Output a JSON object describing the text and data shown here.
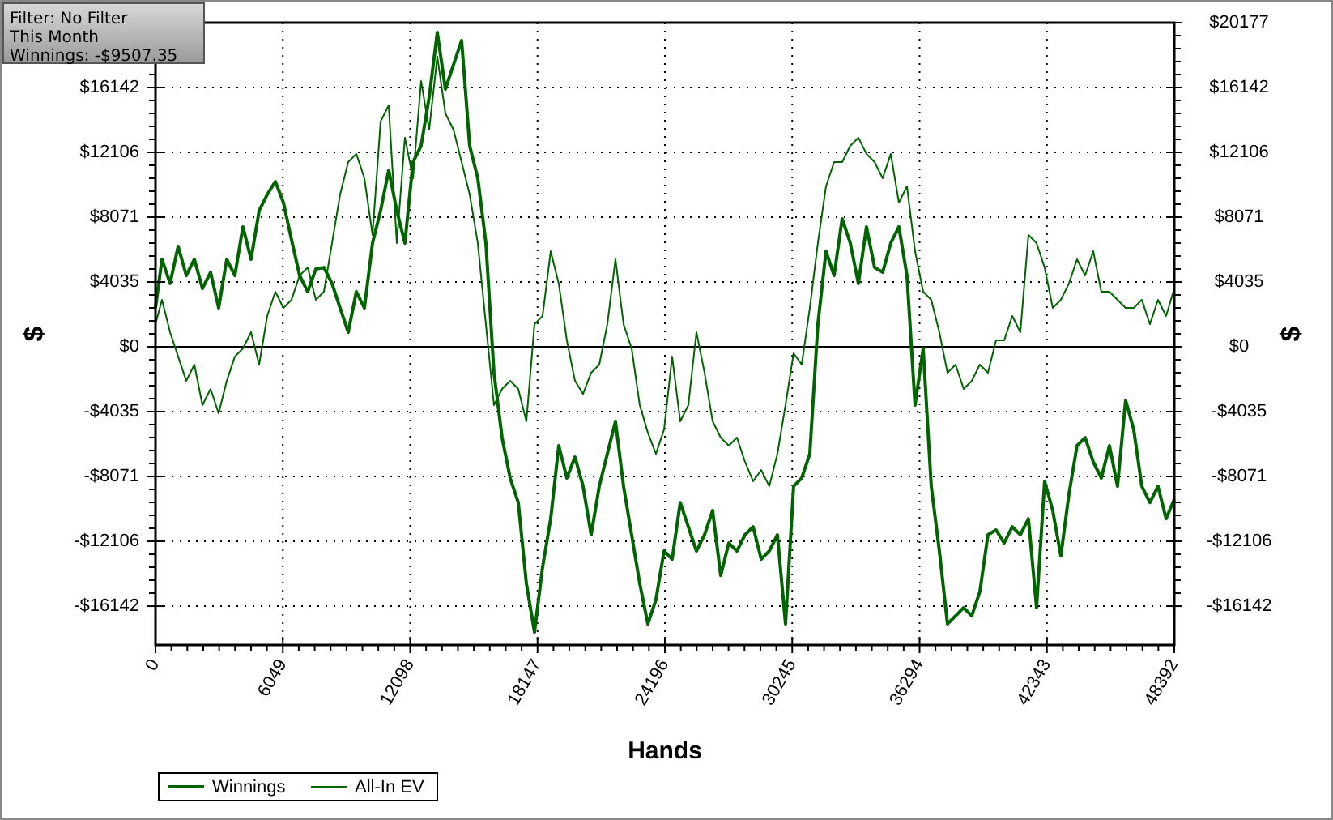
{
  "chart_data": {
    "type": "line",
    "xlabel": "Hands",
    "ylabel": "$",
    "y2label": "$",
    "annotations": [
      "Filter: No Filter",
      "This Month",
      "Winnings: -$9507.35"
    ],
    "x": [
      0,
      308,
      692,
      1077,
      1462,
      1846,
      2231,
      2616,
      3000,
      3385,
      3770,
      4154,
      4539,
      4924,
      5308,
      5693,
      6077,
      6462,
      6847,
      7231,
      7616,
      8001,
      8385,
      8770,
      9155,
      9539,
      9924,
      10309,
      10693,
      11078,
      11462,
      11847,
      12232,
      12616,
      13001,
      13386,
      13770,
      14155,
      14540,
      14924,
      15309,
      15694,
      16078,
      16463,
      16848,
      17232,
      17617,
      18002,
      18386,
      18771,
      19155,
      19540,
      19925,
      20309,
      20694,
      21079,
      21463,
      21848,
      22233,
      22617,
      23002,
      23387,
      23771,
      24156,
      24541,
      24925,
      25310,
      25695,
      26079,
      26464,
      26848,
      27233,
      27618,
      28002,
      28387,
      28772,
      29156,
      29541,
      29926,
      30310,
      30695,
      31080,
      31464,
      31849,
      32234,
      32618,
      33003,
      33387,
      33772,
      34157,
      34541,
      34926,
      35311,
      35695,
      36080,
      36465,
      36849,
      37234,
      37619,
      38003,
      38388,
      38773,
      39157,
      39542,
      39927,
      40311,
      40696,
      41081,
      41465,
      41850,
      42234,
      42619,
      43004,
      43388,
      43773,
      44158,
      44542,
      44927,
      45312,
      45696,
      46081,
      46465,
      46850,
      47235,
      47619,
      48004,
      48392
    ],
    "series": [
      {
        "name": "Winnings",
        "color": "#006400",
        "values": [
          2420,
          5450,
          3940,
          6260,
          4440,
          5450,
          3630,
          4640,
          2420,
          5450,
          4440,
          7470,
          5450,
          8480,
          9480,
          10290,
          8980,
          6660,
          4440,
          3430,
          4840,
          4940,
          3940,
          2420,
          910,
          3430,
          2420,
          6460,
          8480,
          11000,
          8480,
          6460,
          11500,
          12510,
          15540,
          19570,
          16040,
          17560,
          19070,
          12510,
          10490,
          6460,
          -1610,
          -5650,
          -8170,
          -9690,
          -14730,
          -17760,
          -13720,
          -10700,
          -6150,
          -8170,
          -6860,
          -8680,
          -11700,
          -8680,
          -6660,
          -4640,
          -8680,
          -11700,
          -14730,
          -17250,
          -15740,
          -12710,
          -13220,
          -9690,
          -11200,
          -12710,
          -11700,
          -10190,
          -14230,
          -12210,
          -12710,
          -11700,
          -11200,
          -13220,
          -12710,
          -11700,
          -17250,
          -8680,
          -8170,
          -6660,
          1410,
          5950,
          4440,
          7970,
          6460,
          3940,
          7470,
          4940,
          4640,
          6460,
          7470,
          4440,
          -3630,
          -100,
          -8680,
          -12710,
          -17250,
          -16750,
          -16240,
          -16750,
          -15240,
          -11700,
          -11400,
          -12210,
          -11200,
          -11700,
          -10700,
          -16240,
          -8370,
          -10190,
          -13020,
          -9180,
          -6150,
          -5650,
          -7160,
          -8170,
          -6150,
          -8680,
          -3330,
          -5150,
          -8680,
          -9690,
          -8680,
          -10700,
          -9480
        ]
      },
      {
        "name": "All-In EV",
        "color": "#006400",
        "values": [
          1410,
          2930,
          910,
          -610,
          -2120,
          -1110,
          -3630,
          -2620,
          -4140,
          -2120,
          -610,
          -100,
          910,
          -1110,
          1920,
          3430,
          2420,
          2930,
          4440,
          4940,
          2930,
          3430,
          6460,
          9480,
          11500,
          12010,
          10490,
          6960,
          14030,
          15030,
          6460,
          13020,
          10490,
          16550,
          13520,
          18060,
          14530,
          13520,
          11500,
          9480,
          6460,
          1410,
          -3630,
          -2620,
          -2120,
          -2620,
          -4640,
          1410,
          1920,
          5950,
          3940,
          400,
          -2120,
          -2930,
          -1610,
          -1110,
          1410,
          5450,
          1410,
          -100,
          -3630,
          -5350,
          -6660,
          -5150,
          -610,
          -4640,
          -3630,
          910,
          -1610,
          -4640,
          -5650,
          -6150,
          -5650,
          -7160,
          -8370,
          -7670,
          -8680,
          -6660,
          -3630,
          -400,
          -1110,
          2420,
          6460,
          9990,
          11500,
          11500,
          12510,
          13020,
          12010,
          11500,
          10490,
          12010,
          8980,
          9990,
          5950,
          3430,
          2930,
          910,
          -1610,
          -1110,
          -2620,
          -2120,
          -1110,
          -1610,
          400,
          400,
          1920,
          910,
          6960,
          6460,
          4940,
          2420,
          2930,
          3940,
          5450,
          4440,
          5950,
          3430,
          3430,
          2930,
          2420,
          2420,
          2930,
          1410,
          2930,
          1920,
          3630
        ]
      }
    ],
    "xlim": [
      0,
      48392
    ],
    "xticks": [
      0,
      6049,
      12098,
      18147,
      24196,
      30245,
      36294,
      42343,
      48392
    ],
    "ylim": [
      -18560,
      20177
    ],
    "yticks": [
      {
        "value": 20177,
        "label": null
      },
      {
        "value": 16142,
        "label": "$16142"
      },
      {
        "value": 12106,
        "label": "$12106"
      },
      {
        "value": 8071,
        "label": "$8071"
      },
      {
        "value": 4035,
        "label": "$4035"
      },
      {
        "value": 0,
        "label": "$0"
      },
      {
        "value": -4035,
        "label": "-$4035"
      },
      {
        "value": -8071,
        "label": "-$8071"
      },
      {
        "value": -12106,
        "label": "-$12106"
      },
      {
        "value": -16142,
        "label": "-$16142"
      }
    ],
    "y2lim": [
      -18560,
      20177
    ],
    "y2ticks": [
      {
        "value": 20177,
        "label": "$20177"
      },
      {
        "value": 16142,
        "label": "$16142"
      },
      {
        "value": 12106,
        "label": "$12106"
      },
      {
        "value": 8071,
        "label": "$8071"
      },
      {
        "value": 4035,
        "label": "$4035"
      },
      {
        "value": 0,
        "label": "$0"
      },
      {
        "value": -4035,
        "label": "-$4035"
      },
      {
        "value": -8071,
        "label": "-$8071"
      },
      {
        "value": -12106,
        "label": "-$12106"
      },
      {
        "value": -16142,
        "label": "-$16142"
      }
    ],
    "ref_lines": [
      {
        "axis": "y",
        "value": 0,
        "color": "#000000",
        "line_style": "solid"
      }
    ],
    "grid": true,
    "legend": "bottom",
    "marker": "none",
    "line_style": "solid"
  }
}
